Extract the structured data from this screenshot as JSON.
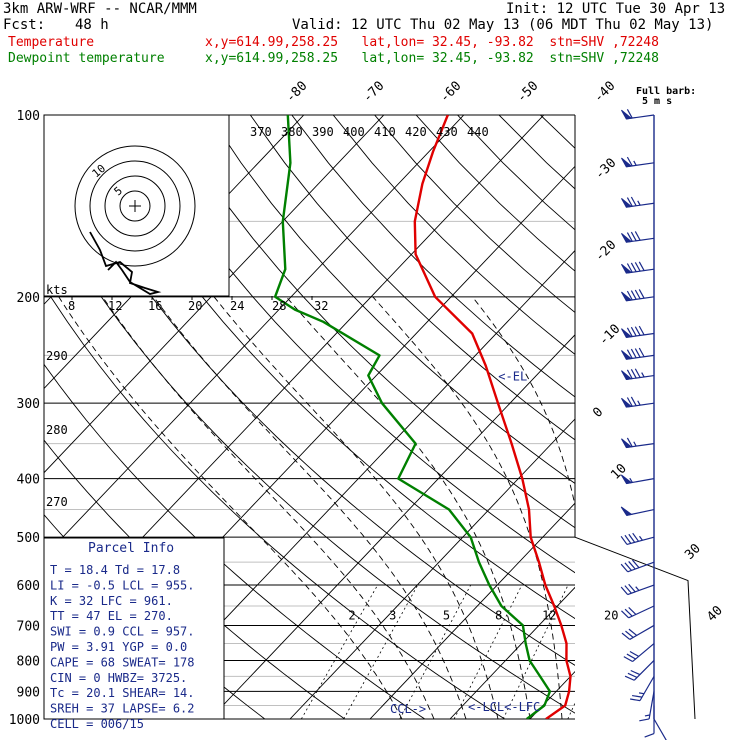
{
  "header": {
    "model": "3km ARW-WRF -- NCAR/MMM",
    "init": "Init: 12 UTC Tue 30 Apr 13",
    "fcst_label": "Fcst:",
    "fcst_hours": "48 h",
    "valid": "Valid: 12 UTC Thu 02 May 13 (06 MDT Thu 02 May 13)",
    "temp_label": "Temperature",
    "dew_label": "Dewpoint temperature",
    "loc_info": "x,y=614.99,258.25   lat,lon= 32.45, -93.82  stn=SHV ,72248",
    "temp_color": "#e00000",
    "dew_color": "#008000"
  },
  "chart_data": {
    "type": "line",
    "subtype": "skew-T log-p sounding",
    "y_scale": "log",
    "ylabel_ticks": [
      "100",
      "200",
      "300",
      "400",
      "500",
      "600",
      "700",
      "800",
      "900",
      "1000"
    ],
    "ylim": [
      1000,
      100
    ],
    "series": [
      {
        "name": "Temperature",
        "color": "#e00000",
        "points": [
          [
            1000,
            22
          ],
          [
            950,
            22.8
          ],
          [
            900,
            21.6
          ],
          [
            850,
            20
          ],
          [
            800,
            17.6
          ],
          [
            750,
            15.6
          ],
          [
            700,
            12.8
          ],
          [
            650,
            9.6
          ],
          [
            600,
            6
          ],
          [
            550,
            2.5
          ],
          [
            500,
            -1.5
          ],
          [
            450,
            -5
          ],
          [
            400,
            -9.5
          ],
          [
            350,
            -15
          ],
          [
            300,
            -21.5
          ],
          [
            260,
            -27.5
          ],
          [
            230,
            -33
          ],
          [
            200,
            -42
          ],
          [
            170,
            -49.5
          ],
          [
            150,
            -53.5
          ],
          [
            130,
            -57
          ],
          [
            115,
            -59.5
          ],
          [
            100,
            -62
          ]
        ]
      },
      {
        "name": "Dewpoint temperature",
        "color": "#008000",
        "points": [
          [
            1000,
            19.6
          ],
          [
            950,
            20.2
          ],
          [
            900,
            19.2
          ],
          [
            850,
            16.2
          ],
          [
            800,
            13
          ],
          [
            750,
            10.5
          ],
          [
            700,
            8
          ],
          [
            650,
            3
          ],
          [
            600,
            -1
          ],
          [
            550,
            -5
          ],
          [
            500,
            -9
          ],
          [
            450,
            -15
          ],
          [
            400,
            -25
          ],
          [
            350,
            -27
          ],
          [
            300,
            -36
          ],
          [
            270,
            -41
          ],
          [
            250,
            -42
          ],
          [
            220,
            -53
          ],
          [
            210,
            -58
          ],
          [
            200,
            -62
          ],
          [
            180,
            -64
          ],
          [
            150,
            -70
          ],
          [
            120,
            -76
          ],
          [
            100,
            -82
          ]
        ]
      }
    ],
    "isotherm_labels": [
      "-80",
      "-70",
      "-60",
      "-50",
      "-40",
      "-30",
      "-20",
      "-10",
      "0",
      "10",
      "30",
      "40"
    ],
    "theta_labels": [
      "370",
      "380",
      "390",
      "400",
      "410",
      "420",
      "430",
      "440"
    ],
    "theta_labels_mid": [
      "290",
      "280",
      "270"
    ],
    "hodo_speed_labels": [
      "8",
      "12",
      "16",
      "20",
      "24",
      "28",
      "32"
    ],
    "hodo_ring_labels": [
      "5",
      "10"
    ],
    "hodo_units": "kts",
    "mixing_ratio_labels": [
      "2",
      "3",
      "5",
      "8",
      "12",
      "20"
    ],
    "annotations": {
      "el": "<-EL",
      "lfc": "<-LFC",
      "lcl": "<-LCL",
      "ccl": "CCL->"
    },
    "barb_legend": "Full barb:",
    "barb_units": "5 m s",
    "winds": [
      [
        1000,
        150,
        3
      ],
      [
        950,
        180,
        5
      ],
      [
        900,
        190,
        8
      ],
      [
        850,
        210,
        12
      ],
      [
        800,
        225,
        14
      ],
      [
        750,
        230,
        15
      ],
      [
        700,
        240,
        15
      ],
      [
        650,
        245,
        15
      ],
      [
        600,
        250,
        17
      ],
      [
        550,
        250,
        20
      ],
      [
        500,
        255,
        22
      ],
      [
        450,
        258,
        25
      ],
      [
        400,
        260,
        28
      ],
      [
        350,
        262,
        33
      ],
      [
        300,
        262,
        38
      ],
      [
        270,
        262,
        42
      ],
      [
        250,
        262,
        45
      ],
      [
        230,
        262,
        45
      ],
      [
        200,
        262,
        46
      ],
      [
        180,
        262,
        45
      ],
      [
        160,
        262,
        40
      ],
      [
        140,
        262,
        38
      ],
      [
        120,
        262,
        33
      ],
      [
        100,
        262,
        30
      ]
    ]
  },
  "parcel_info": {
    "title": "Parcel Info",
    "rows": [
      "T  =    18.4  Td =  17.8",
      "LI =    -0.5  LCL =  955.",
      "K  =     32  LFC =  961.",
      "TT =     47  EL  =  270.",
      "SWI =    0.9  CCL =  957.",
      "PW =   3.91  YGP =   0.0",
      "CAPE =    68  SWEAT=   178",
      "CIN  =     0  HWBZ= 3725.",
      "Tc  =  20.1  SHEAR=   14.",
      "SREH =    37  LAPSE=   6.2",
      "CELL =  006/15"
    ]
  }
}
